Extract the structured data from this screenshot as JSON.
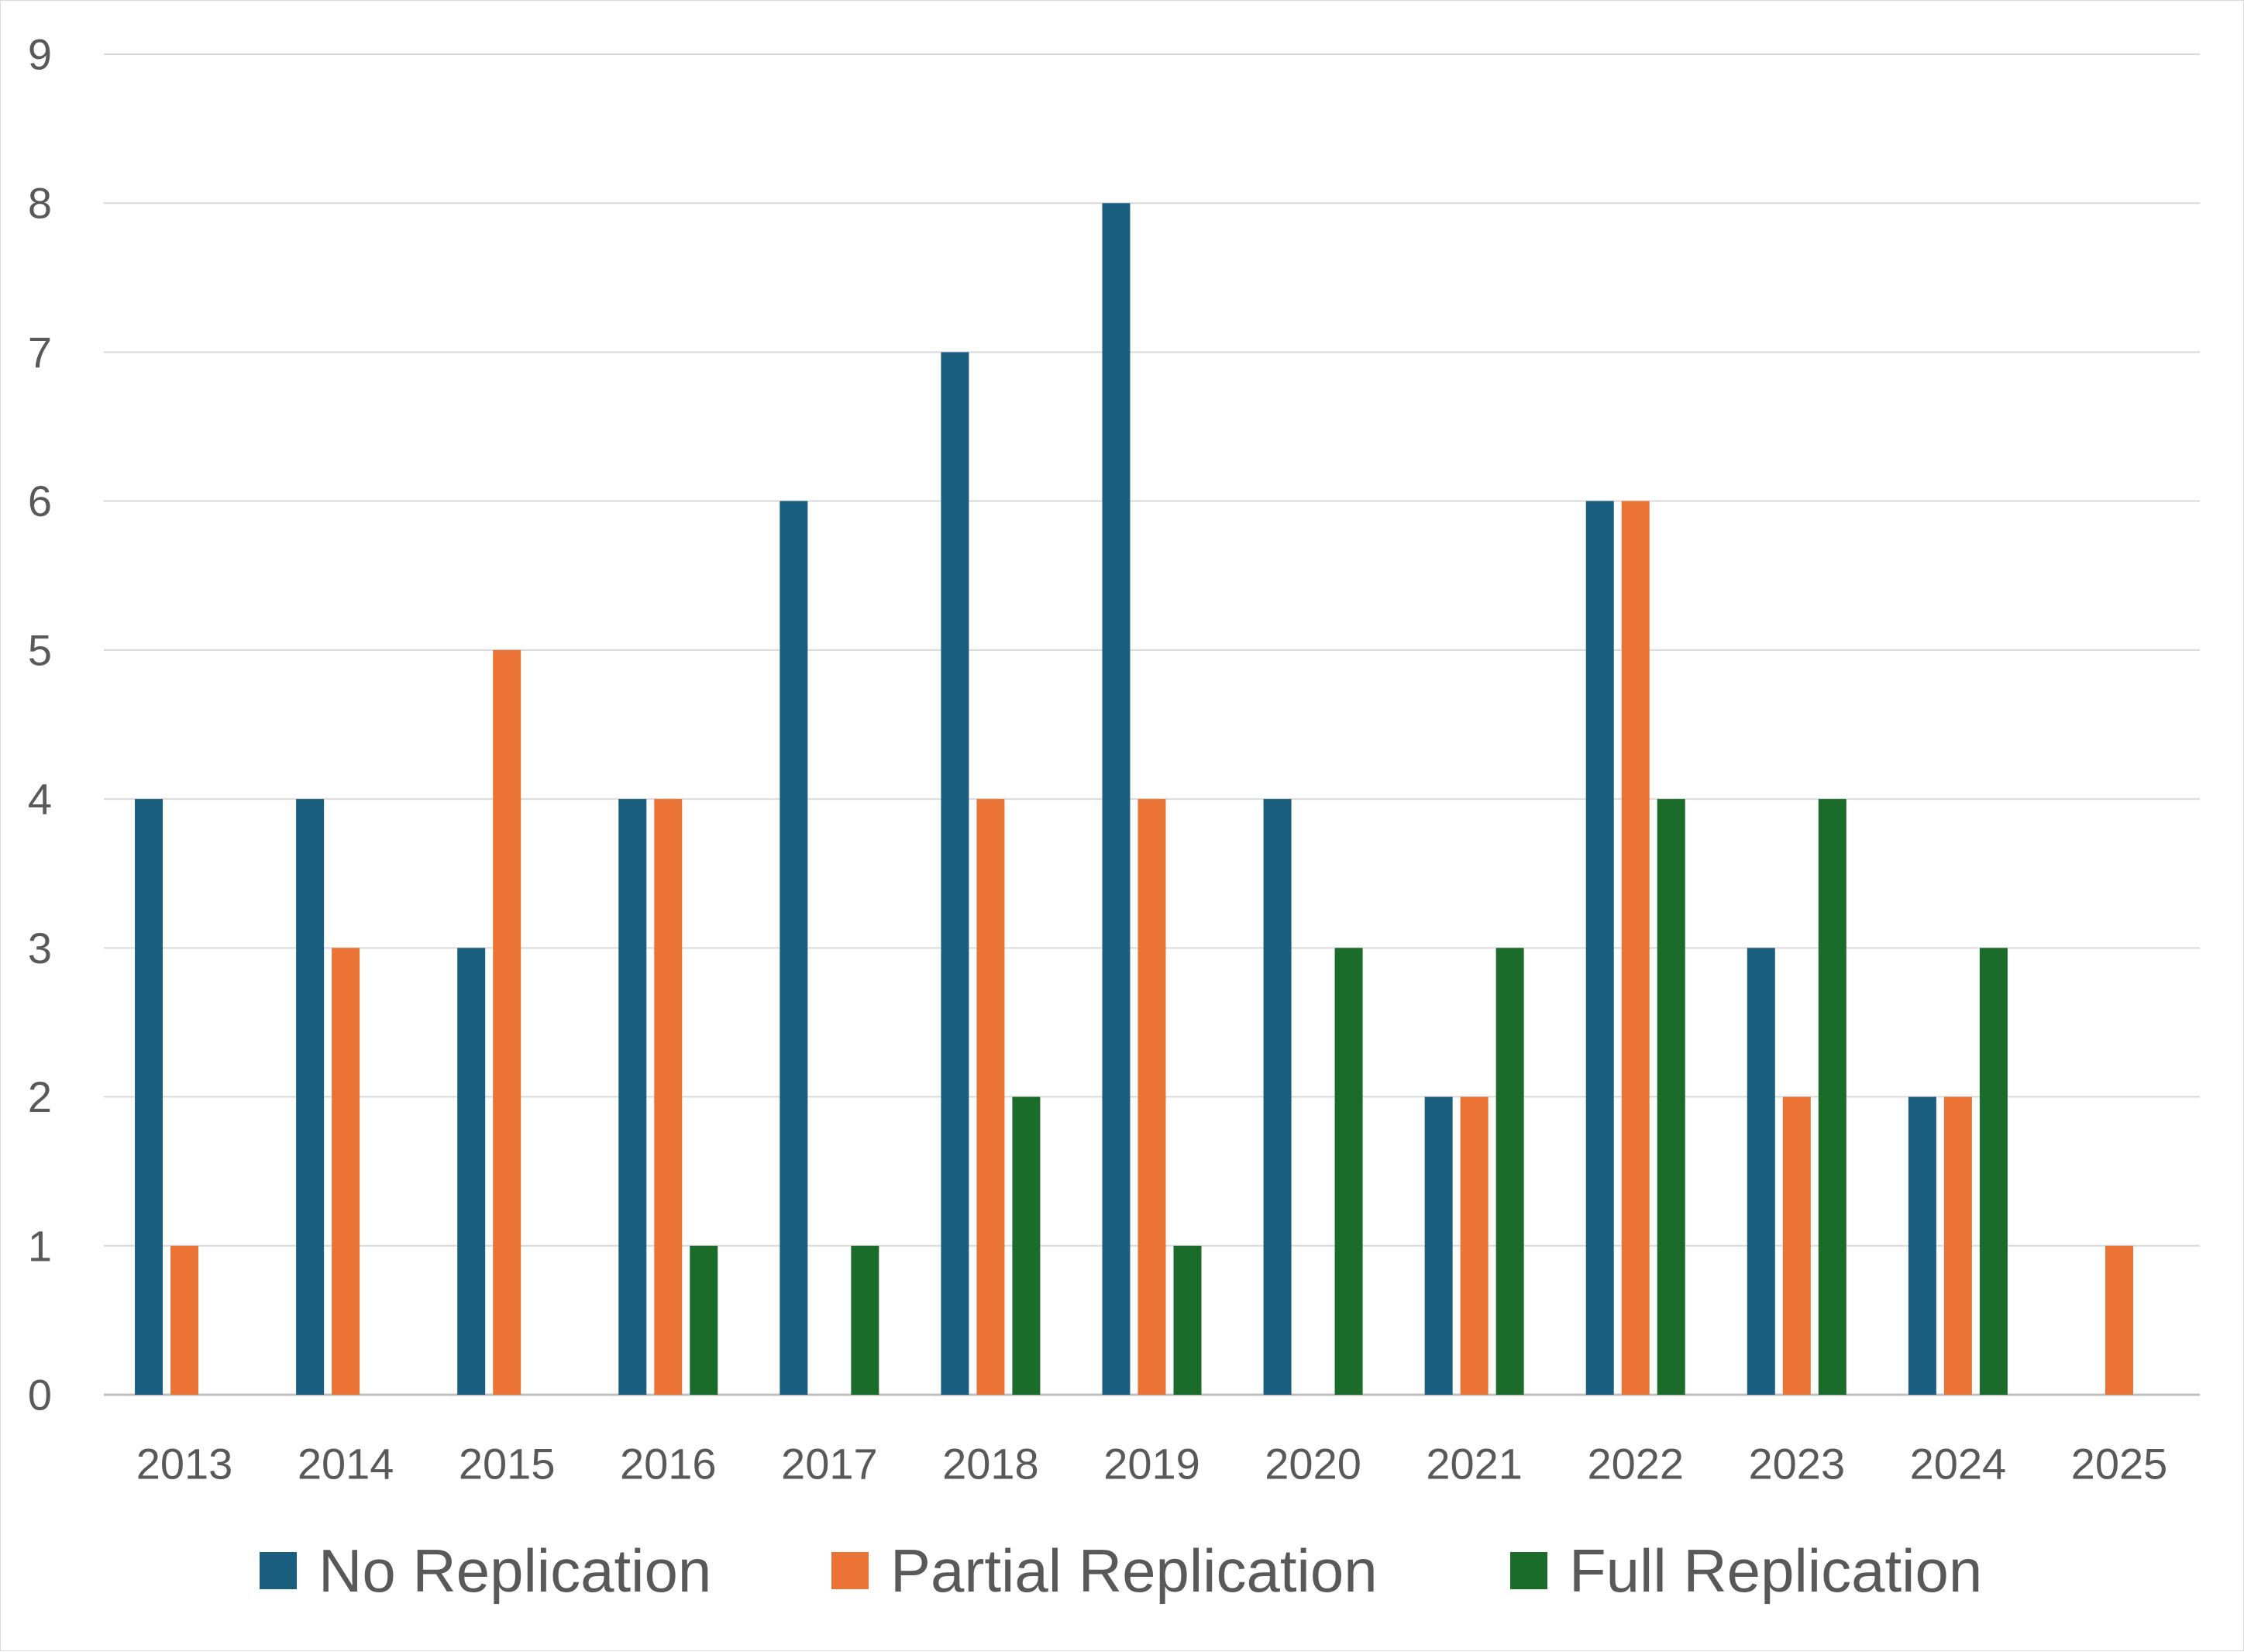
{
  "chart_data": {
    "type": "bar",
    "title": "",
    "xlabel": "",
    "ylabel": "",
    "categories": [
      "2013",
      "2014",
      "2015",
      "2016",
      "2017",
      "2018",
      "2019",
      "2020",
      "2021",
      "2022",
      "2023",
      "2024",
      "2025"
    ],
    "series": [
      {
        "name": "No Replication",
        "color": "#1b5f80",
        "values": [
          4,
          4,
          3,
          4,
          6,
          7,
          8,
          4,
          2,
          6,
          3,
          2,
          0
        ]
      },
      {
        "name": "Partial Replication",
        "color": "#ea7335",
        "values": [
          1,
          3,
          5,
          4,
          0,
          4,
          4,
          0,
          2,
          6,
          2,
          2,
          1
        ]
      },
      {
        "name": "Full Replication",
        "color": "#1b6b2a",
        "values": [
          0,
          0,
          0,
          1,
          1,
          2,
          1,
          3,
          3,
          4,
          4,
          3,
          0
        ]
      }
    ],
    "ylim": [
      0,
      9
    ],
    "yticks": [
      "0",
      "1",
      "2",
      "3",
      "4",
      "5",
      "6",
      "7",
      "8",
      "9"
    ],
    "grid": true,
    "legend_position": "bottom"
  }
}
